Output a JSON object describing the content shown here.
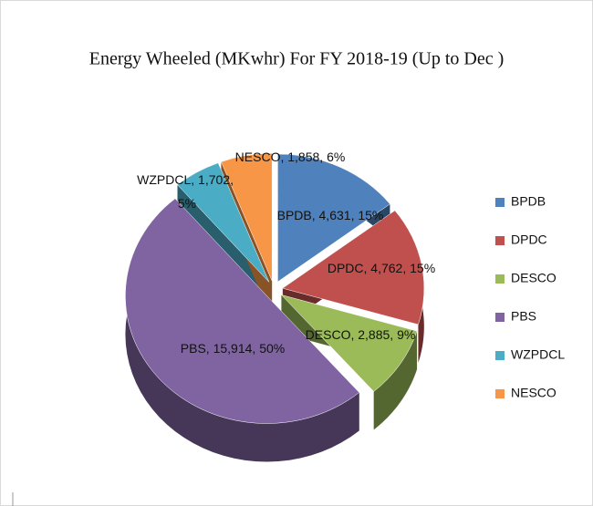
{
  "chart_data": {
    "type": "pie",
    "title": "Energy  Wheeled (MKwhr) For FY 2018-19  (Up to Dec )",
    "categories": [
      "BPDB",
      "DPDC",
      "DESCO",
      "PBS",
      "WZPDCL",
      "NESCO"
    ],
    "values": [
      4631,
      4762,
      2885,
      15914,
      1702,
      1858
    ],
    "value_labels": [
      "4,631",
      "4,762",
      "2,885",
      "15,914",
      "1,702",
      "1,858"
    ],
    "percents": [
      15,
      15,
      9,
      50,
      5,
      6
    ],
    "percent_labels": [
      "15%",
      "15%",
      "9%",
      "50%",
      "5%",
      "6%"
    ],
    "label_separator": ", ",
    "colors": [
      "#4f81bd",
      "#c0504d",
      "#9bbb59",
      "#8064a2",
      "#4bacc6",
      "#f79646"
    ],
    "legend": "right"
  }
}
